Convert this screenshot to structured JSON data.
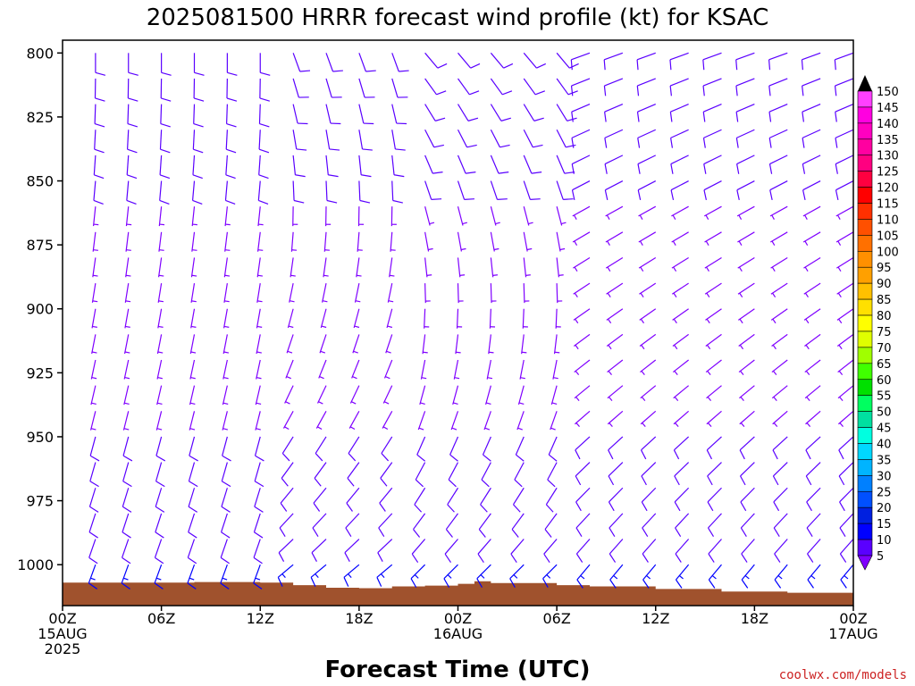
{
  "chart_data": {
    "type": "wind_barb_profile",
    "title": "2025081500 HRRR forecast wind profile (kt) for KSAC",
    "xlabel": "Forecast Time (UTC)",
    "ylabel": "",
    "credit": "coolwx.com/models",
    "y_axis": {
      "unit": "hPa",
      "range": [
        795,
        1016
      ],
      "inverted": true,
      "ticks": [
        800,
        825,
        850,
        875,
        900,
        925,
        950,
        975,
        1000
      ],
      "tick_labels": [
        "800",
        "825",
        "850",
        "875",
        "900",
        "925",
        "950",
        "975",
        "1000"
      ]
    },
    "x_axis": {
      "range_hours": [
        0,
        48
      ],
      "ticks": [
        {
          "hour": 0,
          "lines": [
            "00Z",
            "15AUG",
            "2025"
          ]
        },
        {
          "hour": 6,
          "lines": [
            "06Z"
          ]
        },
        {
          "hour": 12,
          "lines": [
            "12Z"
          ]
        },
        {
          "hour": 18,
          "lines": [
            "18Z"
          ]
        },
        {
          "hour": 24,
          "lines": [
            "00Z",
            "16AUG"
          ]
        },
        {
          "hour": 30,
          "lines": [
            "06Z"
          ]
        },
        {
          "hour": 36,
          "lines": [
            "12Z"
          ]
        },
        {
          "hour": 42,
          "lines": [
            "18Z"
          ]
        },
        {
          "hour": 48,
          "lines": [
            "00Z",
            "17AUG"
          ]
        }
      ]
    },
    "levels_hpa": [
      800,
      810,
      820,
      830,
      840,
      850,
      860,
      870,
      880,
      890,
      900,
      910,
      920,
      930,
      940,
      950,
      960,
      970,
      980,
      990,
      1000
    ],
    "forecast_hours": [
      2,
      4,
      6,
      8,
      10,
      12,
      14,
      16,
      18,
      20,
      22,
      24,
      26,
      28,
      30,
      32,
      34,
      36,
      38,
      40,
      42,
      44,
      46,
      48
    ],
    "speed_kt_profile": [
      10,
      10,
      10,
      10,
      10,
      10,
      9,
      9,
      9,
      8,
      8,
      8,
      8,
      9,
      9,
      10,
      11,
      12,
      13,
      14,
      15
    ],
    "direction_regimes": [
      {
        "hours": [
          0,
          12
        ],
        "upper_deg": 180,
        "lower_deg": 200
      },
      {
        "hours": [
          14,
          20
        ],
        "upper_deg": 160,
        "lower_deg": 230
      },
      {
        "hours": [
          22,
          30
        ],
        "upper_deg": 140,
        "lower_deg": 225
      },
      {
        "hours": [
          32,
          48
        ],
        "upper_deg": 250,
        "lower_deg": 220
      }
    ],
    "surface_pressure_hpa": [
      {
        "hour": 0,
        "p": 1007
      },
      {
        "hour": 4,
        "p": 1007
      },
      {
        "hour": 8,
        "p": 1006.8
      },
      {
        "hour": 12,
        "p": 1007
      },
      {
        "hour": 14,
        "p": 1008
      },
      {
        "hour": 16,
        "p": 1009
      },
      {
        "hour": 18,
        "p": 1009.2
      },
      {
        "hour": 20,
        "p": 1008.5
      },
      {
        "hour": 22,
        "p": 1008.2
      },
      {
        "hour": 24,
        "p": 1007.5
      },
      {
        "hour": 25,
        "p": 1006.5
      },
      {
        "hour": 26,
        "p": 1007.2
      },
      {
        "hour": 30,
        "p": 1008
      },
      {
        "hour": 32,
        "p": 1008.5
      },
      {
        "hour": 36,
        "p": 1009.5
      },
      {
        "hour": 40,
        "p": 1010.5
      },
      {
        "hour": 44,
        "p": 1011
      },
      {
        "hour": 48,
        "p": 1010
      }
    ],
    "colorbar": {
      "min_label": 5,
      "max_label": 150,
      "step": 5,
      "labels": [
        "150",
        "145",
        "140",
        "135",
        "130",
        "125",
        "120",
        "115",
        "110",
        "105",
        "100",
        "95",
        "90",
        "85",
        "80",
        "75",
        "70",
        "65",
        "60",
        "55",
        "50",
        "45",
        "40",
        "35",
        "30",
        "25",
        "20",
        "15",
        "10",
        "5"
      ],
      "colors": [
        "#7f00ff",
        "#5a00ff",
        "#0000ff",
        "#0020e0",
        "#0050ff",
        "#0080ff",
        "#00b4ff",
        "#00d8ff",
        "#00ffe0",
        "#00e0a0",
        "#00ff60",
        "#00e000",
        "#40ff00",
        "#a0ff00",
        "#e0ff00",
        "#ffff00",
        "#ffe000",
        "#ffc000",
        "#ffa000",
        "#ff9000",
        "#ff7000",
        "#ff5000",
        "#ff3000",
        "#ff0000",
        "#ff0040",
        "#ff0080",
        "#ff00a0",
        "#ff00c0",
        "#ff00e0",
        "#ff40ff"
      ]
    }
  }
}
